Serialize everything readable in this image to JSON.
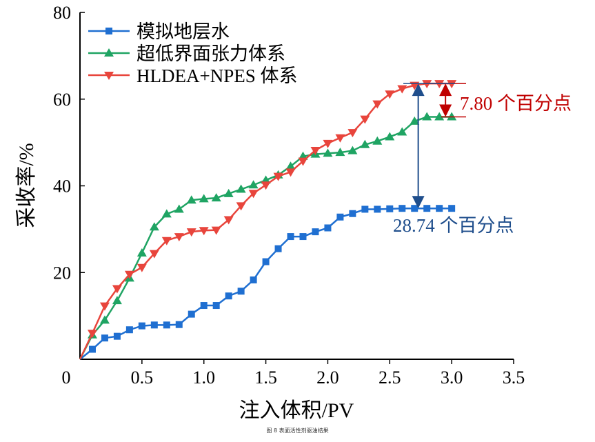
{
  "chart_data": {
    "type": "line",
    "xlabel": "注入体积/PV",
    "ylabel": "采收率/%",
    "xlim": [
      0,
      3.5
    ],
    "ylim": [
      0,
      80
    ],
    "xticks": [
      "0",
      "0.5",
      "1.0",
      "1.5",
      "2.0",
      "2.5",
      "3.0",
      "3.5"
    ],
    "yticks": [
      "20",
      "40",
      "60",
      "80"
    ],
    "grid": false,
    "legend_position": "top-left",
    "x": [
      0,
      0.1,
      0.2,
      0.3,
      0.4,
      0.5,
      0.6,
      0.7,
      0.8,
      0.9,
      1.0,
      1.1,
      1.2,
      1.3,
      1.4,
      1.5,
      1.6,
      1.7,
      1.8,
      1.9,
      2.0,
      2.1,
      2.2,
      2.3,
      2.4,
      2.5,
      2.6,
      2.7,
      2.8,
      2.9,
      3.0
    ],
    "series": [
      {
        "name": "模拟地层水",
        "color": "#1f6fd1",
        "marker": "square",
        "values": [
          0,
          2.3,
          4.9,
          5.3,
          6.8,
          7.7,
          7.9,
          7.9,
          8.0,
          10.4,
          12.4,
          12.4,
          14.6,
          15.7,
          18.3,
          22.5,
          25.5,
          28.3,
          28.3,
          29.4,
          30.3,
          32.8,
          33.6,
          34.6,
          34.6,
          34.7,
          34.8,
          34.8,
          34.8,
          34.8,
          34.8
        ]
      },
      {
        "name": "超低界面张力体系",
        "color": "#1fa463",
        "marker": "triangle-up",
        "values": [
          0,
          5.6,
          9.0,
          13.5,
          18.7,
          24.5,
          30.5,
          33.5,
          34.6,
          36.7,
          37.0,
          37.2,
          38.2,
          39.2,
          40.2,
          41.3,
          42.5,
          44.5,
          46.8,
          47.3,
          47.5,
          47.7,
          48.1,
          49.5,
          50.3,
          51.3,
          52.4,
          54.9,
          55.9,
          55.9,
          55.9
        ]
      },
      {
        "name": "HLDEA+NPES 体系",
        "color": "#e8453c",
        "marker": "triangle-down",
        "values": [
          0,
          6.0,
          12.3,
          16.3,
          19.6,
          21.2,
          24.4,
          27.4,
          28.3,
          29.4,
          29.7,
          29.8,
          32.2,
          35.4,
          38.3,
          40.2,
          42.2,
          43.2,
          45.7,
          48.2,
          49.8,
          51.1,
          52.3,
          55.4,
          58.9,
          61.2,
          62.4,
          63.2,
          63.6,
          63.6,
          63.6
        ]
      }
    ],
    "annotations": [
      {
        "text": "7.80 个百分点",
        "color": "#c00000",
        "x": 2.95,
        "from": 55.9,
        "to": 63.6
      },
      {
        "text": "28.74 个百分点",
        "color": "#1f4e8c",
        "x": 2.73,
        "from": 34.8,
        "to": 63.6
      }
    ]
  },
  "caption": "图 8    表面活性剂驱油结果"
}
